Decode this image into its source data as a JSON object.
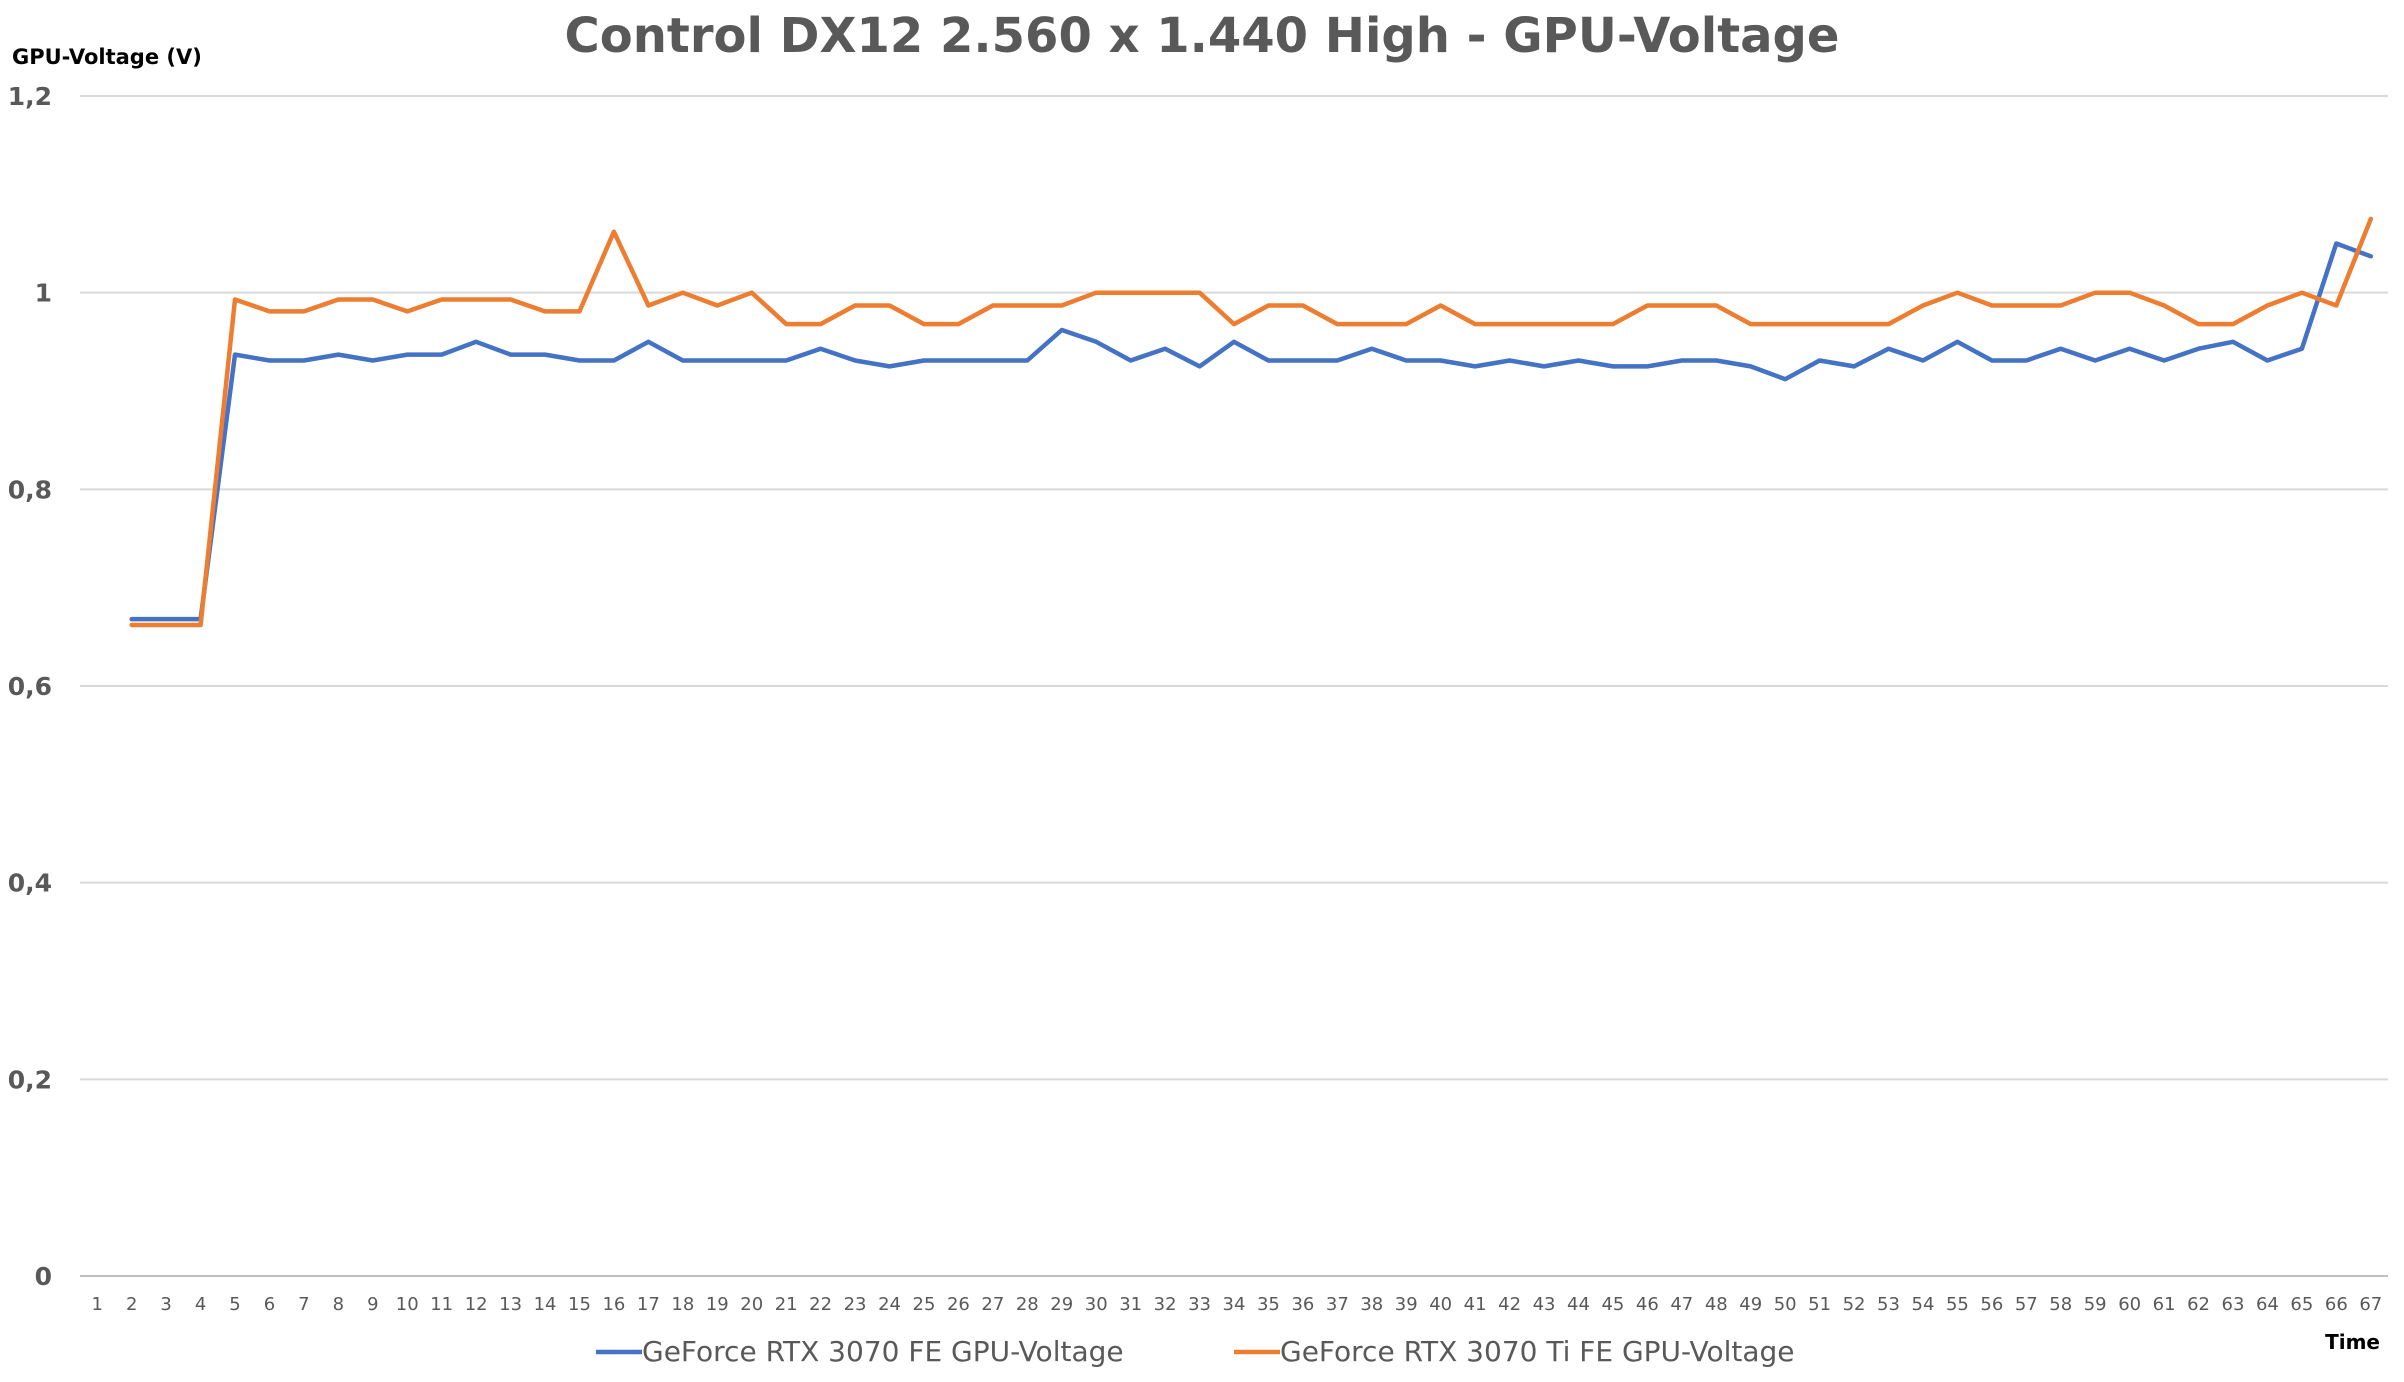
{
  "chart_data": {
    "type": "line",
    "title": "Control DX12 2.560 x 1.440 High - GPU-Voltage",
    "ylabel": "GPU-Voltage (V)",
    "xlabel": "Time",
    "ylim": [
      0,
      1.2
    ],
    "y_ticks": [
      0,
      0.2,
      0.4,
      0.6,
      0.8,
      1,
      1.2
    ],
    "y_tick_labels": [
      "0",
      "0,2",
      "0,4",
      "0,6",
      "0,8",
      "1",
      "1,2"
    ],
    "x": [
      1,
      2,
      3,
      4,
      5,
      6,
      7,
      8,
      9,
      10,
      11,
      12,
      13,
      14,
      15,
      16,
      17,
      18,
      19,
      20,
      21,
      22,
      23,
      24,
      25,
      26,
      27,
      28,
      29,
      30,
      31,
      32,
      33,
      34,
      35,
      36,
      37,
      38,
      39,
      40,
      41,
      42,
      43,
      44,
      45,
      46,
      47,
      48,
      49,
      50,
      51,
      52,
      53,
      54,
      55,
      56,
      57,
      58,
      59,
      60,
      61,
      62,
      63,
      64,
      65,
      66,
      67
    ],
    "grid": true,
    "legend_position": "bottom",
    "series": [
      {
        "name": "GeForce RTX 3070 FE GPU-Voltage",
        "color": "#4472C4",
        "values": [
          null,
          0.668,
          0.668,
          0.668,
          0.937,
          0.931,
          0.931,
          0.937,
          0.931,
          0.937,
          0.937,
          0.95,
          0.937,
          0.937,
          0.931,
          0.931,
          0.95,
          0.931,
          0.931,
          0.931,
          0.931,
          0.943,
          0.931,
          0.925,
          0.931,
          0.931,
          0.931,
          0.931,
          0.962,
          0.95,
          0.931,
          0.943,
          0.925,
          0.95,
          0.931,
          0.931,
          0.931,
          0.943,
          0.931,
          0.931,
          0.925,
          0.931,
          0.925,
          0.931,
          0.925,
          0.925,
          0.931,
          0.931,
          0.925,
          0.912,
          0.931,
          0.925,
          0.943,
          0.931,
          0.95,
          0.931,
          0.931,
          0.943,
          0.931,
          0.943,
          0.931,
          0.943,
          0.95,
          0.931,
          0.943,
          1.05,
          1.037
        ]
      },
      {
        "name": "GeForce RTX 3070 Ti FE GPU-Voltage",
        "color": "#ED7D31",
        "values": [
          null,
          0.662,
          0.662,
          0.662,
          0.993,
          0.981,
          0.981,
          0.993,
          0.993,
          0.981,
          0.993,
          0.993,
          0.993,
          0.981,
          0.981,
          1.062,
          0.987,
          1.0,
          0.987,
          1.0,
          0.968,
          0.968,
          0.987,
          0.987,
          0.968,
          0.968,
          0.987,
          0.987,
          0.987,
          1.0,
          1.0,
          1.0,
          1.0,
          0.968,
          0.987,
          0.987,
          0.968,
          0.968,
          0.968,
          0.987,
          0.968,
          0.968,
          0.968,
          0.968,
          0.968,
          0.987,
          0.987,
          0.987,
          0.968,
          0.968,
          0.968,
          0.968,
          0.968,
          0.987,
          1.0,
          0.987,
          0.987,
          0.987,
          1.0,
          1.0,
          0.987,
          0.968,
          0.968,
          0.987,
          1.0,
          0.987,
          1.075
        ]
      }
    ]
  }
}
